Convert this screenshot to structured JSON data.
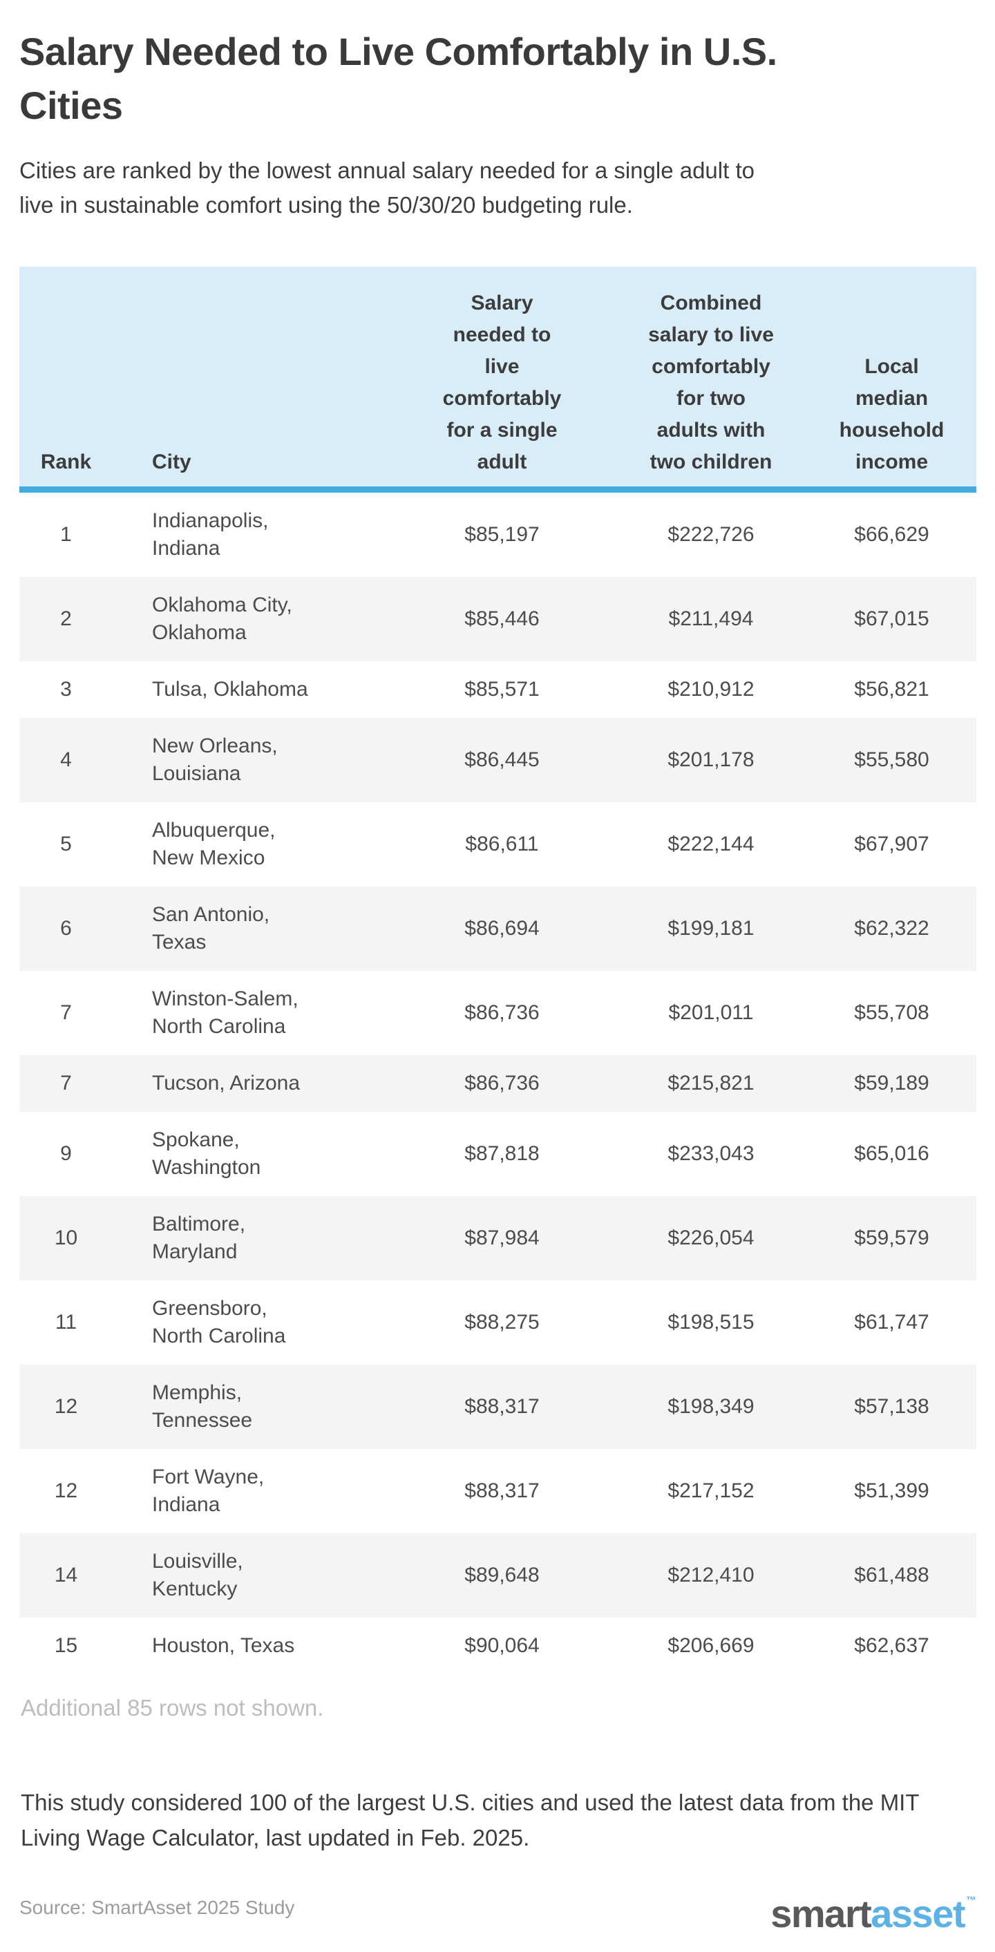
{
  "title": "Salary Needed to Live Comfortably in U.S.\nCities",
  "subtitle": "Cities are ranked by the lowest annual salary needed for a single adult to\nlive in sustainable comfort using the 50/30/20 budgeting rule.",
  "table": {
    "columns": {
      "rank": "Rank",
      "city": "City",
      "single": "Salary\nneeded to\nlive\ncomfortably\nfor a single\nadult",
      "combined": "Combined\nsalary to live\ncomfortably\nfor two\nadults with\ntwo children",
      "median": "Local\nmedian\nhousehold\nincome"
    },
    "rows": [
      {
        "rank": "1",
        "city": "Indianapolis,\nIndiana",
        "single": "$85,197",
        "combined": "$222,726",
        "median": "$66,629"
      },
      {
        "rank": "2",
        "city": "Oklahoma City,\nOklahoma",
        "single": "$85,446",
        "combined": "$211,494",
        "median": "$67,015"
      },
      {
        "rank": "3",
        "city": "Tulsa, Oklahoma",
        "single": "$85,571",
        "combined": "$210,912",
        "median": "$56,821"
      },
      {
        "rank": "4",
        "city": "New Orleans,\nLouisiana",
        "single": "$86,445",
        "combined": "$201,178",
        "median": "$55,580"
      },
      {
        "rank": "5",
        "city": "Albuquerque,\nNew Mexico",
        "single": "$86,611",
        "combined": "$222,144",
        "median": "$67,907"
      },
      {
        "rank": "6",
        "city": "San Antonio,\nTexas",
        "single": "$86,694",
        "combined": "$199,181",
        "median": "$62,322"
      },
      {
        "rank": "7",
        "city": "Winston-Salem,\nNorth Carolina",
        "single": "$86,736",
        "combined": "$201,011",
        "median": "$55,708"
      },
      {
        "rank": "7",
        "city": "Tucson, Arizona",
        "single": "$86,736",
        "combined": "$215,821",
        "median": "$59,189"
      },
      {
        "rank": "9",
        "city": "Spokane,\nWashington",
        "single": "$87,818",
        "combined": "$233,043",
        "median": "$65,016"
      },
      {
        "rank": "10",
        "city": "Baltimore,\nMaryland",
        "single": "$87,984",
        "combined": "$226,054",
        "median": "$59,579"
      },
      {
        "rank": "11",
        "city": "Greensboro,\nNorth Carolina",
        "single": "$88,275",
        "combined": "$198,515",
        "median": "$61,747"
      },
      {
        "rank": "12",
        "city": "Memphis,\nTennessee",
        "single": "$88,317",
        "combined": "$198,349",
        "median": "$57,138"
      },
      {
        "rank": "12",
        "city": "Fort Wayne,\nIndiana",
        "single": "$88,317",
        "combined": "$217,152",
        "median": "$51,399"
      },
      {
        "rank": "14",
        "city": "Louisville,\nKentucky",
        "single": "$89,648",
        "combined": "$212,410",
        "median": "$61,488"
      },
      {
        "rank": "15",
        "city": "Houston, Texas",
        "single": "$90,064",
        "combined": "$206,669",
        "median": "$62,637"
      }
    ]
  },
  "additional_note": "Additional 85 rows not shown.",
  "footnote": "This study considered 100 of the largest U.S. cities and used the latest data from the MIT\nLiving Wage Calculator, last updated in Feb. 2025.",
  "source": "Source: SmartAsset 2025 Study",
  "logo": {
    "part1": "smart",
    "part2": "asset",
    "tm": "™"
  },
  "colors": {
    "header_bg": "#d9edf9",
    "header_border": "#42ace1",
    "alt_row_bg": "#f4f4f4",
    "title_text": "#3a3a3a",
    "cell_text": "#4c4c4c",
    "muted_note": "#bdbdbd",
    "source_text": "#9c9c9c",
    "logo_gray": "#58595b",
    "logo_blue": "#5cb2e5"
  },
  "chart_data": {
    "type": "table",
    "title": "Salary Needed to Live Comfortably in U.S. Cities",
    "subtitle": "Cities are ranked by the lowest annual salary needed for a single adult to live in sustainable comfort using the 50/30/20 budgeting rule.",
    "columns": [
      "Rank",
      "City",
      "Salary needed to live comfortably for a single adult",
      "Combined salary to live comfortably for two adults with two children",
      "Local median household income"
    ],
    "rows": [
      [
        1,
        "Indianapolis, Indiana",
        85197,
        222726,
        66629
      ],
      [
        2,
        "Oklahoma City, Oklahoma",
        85446,
        211494,
        67015
      ],
      [
        3,
        "Tulsa, Oklahoma",
        85571,
        210912,
        56821
      ],
      [
        4,
        "New Orleans, Louisiana",
        86445,
        201178,
        55580
      ],
      [
        5,
        "Albuquerque, New Mexico",
        86611,
        222144,
        67907
      ],
      [
        6,
        "San Antonio, Texas",
        86694,
        199181,
        62322
      ],
      [
        7,
        "Winston-Salem, North Carolina",
        86736,
        201011,
        55708
      ],
      [
        7,
        "Tucson, Arizona",
        86736,
        215821,
        59189
      ],
      [
        9,
        "Spokane, Washington",
        87818,
        233043,
        65016
      ],
      [
        10,
        "Baltimore, Maryland",
        87984,
        226054,
        59579
      ],
      [
        11,
        "Greensboro, North Carolina",
        88275,
        198515,
        61747
      ],
      [
        12,
        "Memphis, Tennessee",
        88317,
        198349,
        57138
      ],
      [
        12,
        "Fort Wayne, Indiana",
        88317,
        217152,
        51399
      ],
      [
        14,
        "Louisville, Kentucky",
        89648,
        212410,
        61488
      ],
      [
        15,
        "Houston, Texas",
        90064,
        206669,
        62637
      ]
    ],
    "notes": [
      "Additional 85 rows not shown.",
      "This study considered 100 of the largest U.S. cities and used the latest data from the MIT Living Wage Calculator, last updated in Feb. 2025.",
      "Source: SmartAsset 2025 Study"
    ]
  }
}
